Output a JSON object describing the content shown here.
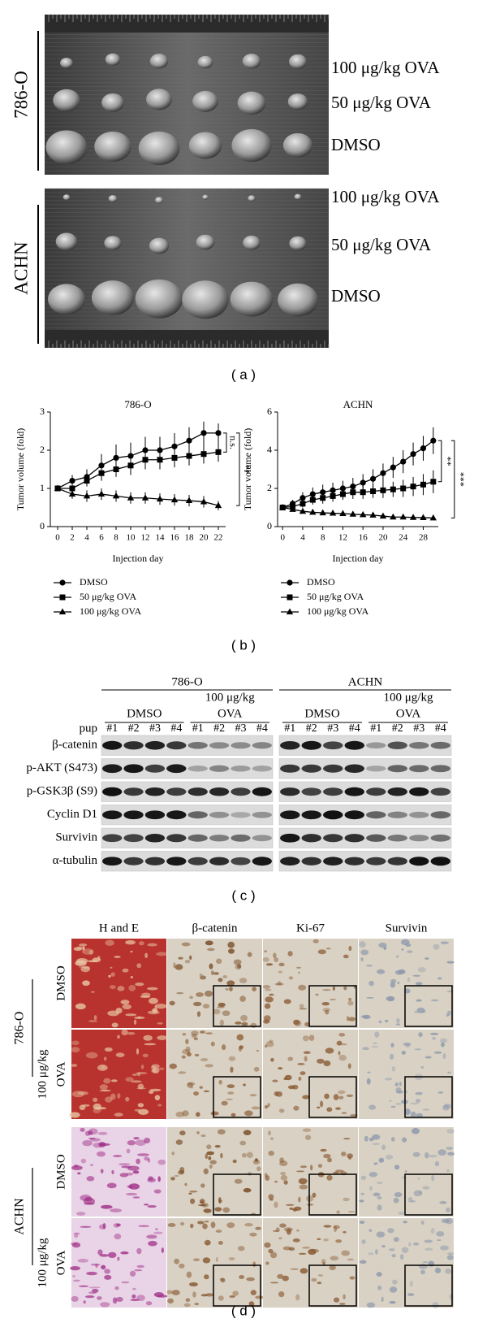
{
  "panel_a": {
    "groups": [
      {
        "name": "786-O",
        "rows": [
          "100 μg/kg OVA",
          "50 μg/kg OVA",
          "DMSO"
        ]
      },
      {
        "name": "ACHN",
        "rows": [
          "100 μg/kg OVA",
          "50 μg/kg OVA",
          "DMSO"
        ]
      }
    ],
    "label": "( a )"
  },
  "chart_data": [
    {
      "type": "line",
      "title": "786-O",
      "x_label": "Injection day",
      "y_label": "Tumor volume (fold)",
      "x": [
        0,
        2,
        4,
        6,
        8,
        10,
        12,
        14,
        16,
        18,
        20,
        22
      ],
      "xlim": [
        -1,
        23
      ],
      "xticks": [
        0,
        2,
        4,
        6,
        8,
        10,
        12,
        14,
        16,
        18,
        20,
        22
      ],
      "ylim": [
        0,
        3
      ],
      "yticks": [
        0,
        1,
        2,
        3
      ],
      "series": [
        {
          "name": "DMSO",
          "color": "#000000",
          "marker": "circle",
          "values": [
            1,
            1.2,
            1.3,
            1.6,
            1.8,
            1.85,
            2.0,
            2.0,
            2.1,
            2.25,
            2.45,
            2.45
          ],
          "errors": [
            0.05,
            0.15,
            0.2,
            0.3,
            0.35,
            0.35,
            0.35,
            0.35,
            0.35,
            0.35,
            0.3,
            0.25
          ]
        },
        {
          "name": "50 μg/kg OVA",
          "color": "#000000",
          "marker": "square",
          "values": [
            1,
            1.0,
            1.2,
            1.4,
            1.5,
            1.6,
            1.75,
            1.75,
            1.8,
            1.85,
            1.9,
            1.95
          ],
          "errors": [
            0.05,
            0.1,
            0.15,
            0.2,
            0.2,
            0.25,
            0.25,
            0.25,
            0.25,
            0.25,
            0.25,
            0.25
          ]
        },
        {
          "name": "100 μg/kg OVA",
          "color": "#000000",
          "marker": "triangle",
          "values": [
            1,
            0.85,
            0.8,
            0.85,
            0.8,
            0.75,
            0.75,
            0.72,
            0.7,
            0.68,
            0.65,
            0.55
          ],
          "errors": [
            0.05,
            0.12,
            0.15,
            0.15,
            0.15,
            0.15,
            0.15,
            0.15,
            0.15,
            0.15,
            0.15,
            0.12
          ]
        }
      ],
      "annotations": [
        "n.s.",
        "**"
      ]
    },
    {
      "type": "line",
      "title": "ACHN",
      "x_label": "Injection day",
      "y_label": "Tumor volume (fold)",
      "x": [
        0,
        2,
        4,
        6,
        8,
        10,
        12,
        14,
        16,
        18,
        20,
        22,
        24,
        26,
        28,
        30
      ],
      "xlim": [
        -1,
        31
      ],
      "xticks": [
        0,
        4,
        8,
        12,
        16,
        20,
        24,
        28
      ],
      "ylim": [
        0,
        6
      ],
      "yticks": [
        0,
        2,
        4,
        6
      ],
      "series": [
        {
          "name": "DMSO",
          "color": "#000000",
          "marker": "circle",
          "values": [
            1,
            1.2,
            1.5,
            1.7,
            1.8,
            1.9,
            2.0,
            2.1,
            2.3,
            2.5,
            2.8,
            3.1,
            3.4,
            3.8,
            4.1,
            4.5
          ],
          "errors": [
            0.05,
            0.2,
            0.3,
            0.35,
            0.4,
            0.4,
            0.4,
            0.45,
            0.45,
            0.5,
            0.5,
            0.55,
            0.6,
            0.6,
            0.65,
            0.7
          ]
        },
        {
          "name": "50 μg/kg OVA",
          "color": "#000000",
          "marker": "square",
          "values": [
            1,
            1.05,
            1.2,
            1.4,
            1.5,
            1.6,
            1.7,
            1.8,
            1.8,
            1.85,
            1.9,
            1.95,
            2.0,
            2.1,
            2.2,
            2.35
          ],
          "errors": [
            0.05,
            0.15,
            0.2,
            0.25,
            0.3,
            0.3,
            0.3,
            0.35,
            0.35,
            0.35,
            0.4,
            0.4,
            0.45,
            0.5,
            0.55,
            0.6
          ]
        },
        {
          "name": "100 μg/kg OVA",
          "color": "#000000",
          "marker": "triangle",
          "values": [
            1,
            0.9,
            0.8,
            0.75,
            0.72,
            0.7,
            0.68,
            0.65,
            0.62,
            0.6,
            0.55,
            0.5,
            0.5,
            0.48,
            0.47,
            0.45
          ],
          "errors": [
            0.05,
            0.1,
            0.1,
            0.1,
            0.1,
            0.1,
            0.1,
            0.1,
            0.1,
            0.1,
            0.1,
            0.1,
            0.1,
            0.1,
            0.1,
            0.1
          ]
        }
      ],
      "annotations": [
        "**",
        "***"
      ]
    }
  ],
  "panel_b_label": "( b )",
  "panel_c": {
    "groups": [
      "786-O",
      "ACHN"
    ],
    "control": "DMSO",
    "treatment": [
      "100 μg/kg",
      "OVA"
    ],
    "sample_label": "pup",
    "samples": [
      "#1",
      "#2",
      "#3",
      "#4"
    ],
    "proteins": [
      "β-catenin",
      "p-AKT (S473)",
      "p-GSK3β (S9)",
      "Cyclin D1",
      "Survivin",
      "α-tubulin"
    ],
    "label": "( c )"
  },
  "panel_d": {
    "columns": [
      "H and E",
      "β-catenin",
      "Ki-67",
      "Survivin"
    ],
    "groups": [
      {
        "name": "786-O",
        "control": "DMSO",
        "treatment": "OVA",
        "dose": "100 μg/kg"
      },
      {
        "name": "ACHN",
        "control": "DMSO",
        "treatment": "OVA",
        "dose": "100 μg/kg"
      }
    ],
    "label": "( d )"
  }
}
